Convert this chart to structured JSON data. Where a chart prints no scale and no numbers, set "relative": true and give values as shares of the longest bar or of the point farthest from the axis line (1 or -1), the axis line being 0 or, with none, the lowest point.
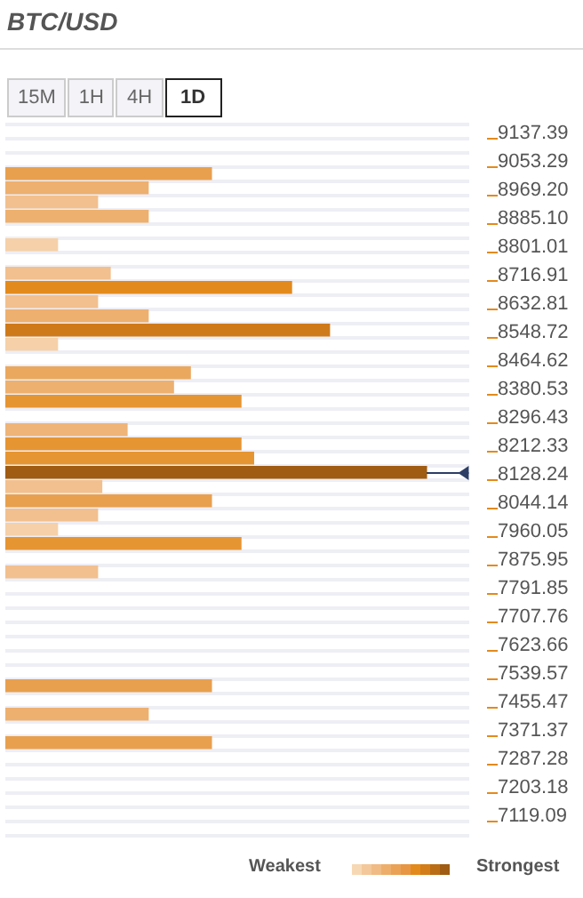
{
  "chart_data": {
    "type": "bar",
    "orientation": "horizontal",
    "relative": true,
    "title": "BTC/USD",
    "annotations": [
      "15M",
      "1H",
      "4H",
      "1D",
      "Weakest",
      "Strongest"
    ],
    "categories": [
      "9137.39",
      null,
      "9053.29",
      null,
      "8969.20",
      null,
      "8885.10",
      null,
      "8801.01",
      null,
      "8716.91",
      null,
      "8632.81",
      null,
      "8548.72",
      null,
      "8464.62",
      null,
      "8380.53",
      null,
      "8296.43",
      null,
      "8212.33",
      null,
      "8128.24",
      null,
      "8044.14",
      null,
      "7960.05",
      null,
      "7875.95",
      null,
      "7791.85",
      null,
      "7707.76",
      null,
      "7623.66",
      null,
      "7539.57",
      null,
      "7455.47",
      null,
      "7371.37",
      null,
      "7287.28",
      null,
      "7203.18",
      null,
      "7119.09",
      null
    ],
    "values": [
      null,
      null,
      null,
      0.49,
      0.34,
      0.22,
      0.34,
      null,
      0.125,
      null,
      0.25,
      0.68,
      0.22,
      0.34,
      0.77,
      0.125,
      null,
      0.44,
      0.4,
      0.56,
      null,
      0.29,
      0.56,
      0.59,
      1,
      0.23,
      0.49,
      0.22,
      0.125,
      0.56,
      null,
      0.22,
      null,
      null,
      null,
      null,
      null,
      null,
      null,
      0.49,
      null,
      0.34,
      null,
      0.49,
      null,
      null,
      null,
      null,
      null,
      null
    ],
    "colors": [
      null,
      null,
      null,
      "#e8a04f",
      "#edb06f",
      "#f2c08e",
      "#edb06f",
      null,
      "#f5d0a8",
      null,
      "#f2c08e",
      "#e38a1c",
      "#f2c08e",
      "#edb06f",
      "#cf7a1a",
      "#f5d0a8",
      null,
      "#eaa85f",
      "#edb06f",
      "#e69533",
      null,
      "#eeb478",
      "#e69533",
      "#e69533",
      "#a05c12",
      "#f2c08e",
      "#e8a04f",
      "#f2c08e",
      "#f5d0a8",
      "#e69533",
      null,
      "#f2c08e",
      null,
      null,
      null,
      null,
      null,
      null,
      null,
      "#e8a04f",
      null,
      "#edb06f",
      null,
      "#e8a04f",
      null,
      null,
      null,
      null,
      null,
      null
    ],
    "grid": "y"
  }
}
